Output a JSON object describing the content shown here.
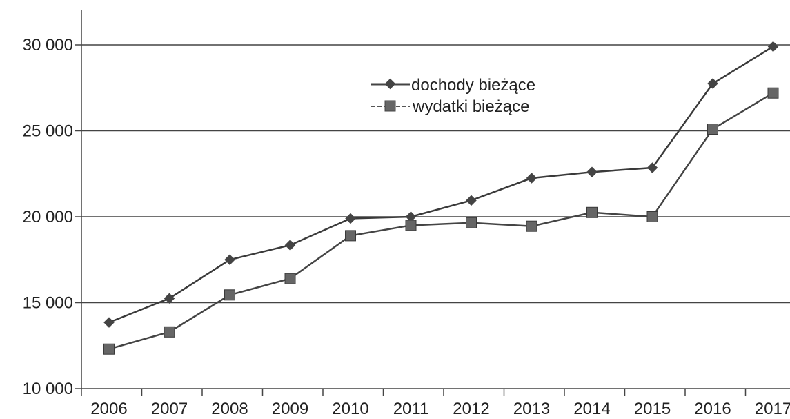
{
  "chart_data": {
    "type": "line",
    "title": "",
    "xlabel": "",
    "ylabel": "",
    "categories": [
      "2006",
      "2007",
      "2008",
      "2009",
      "2010",
      "2011",
      "2012",
      "2013",
      "2014",
      "2015",
      "2016",
      "2017"
    ],
    "ylim": [
      10000,
      30000
    ],
    "yticks": [
      10000,
      15000,
      20000,
      25000,
      30000
    ],
    "ytick_labels": [
      "10 000",
      "15 000",
      "20 000",
      "25 000",
      "30 000"
    ],
    "grid": true,
    "legend_position": "top-center",
    "series": [
      {
        "name": "dochody bieżące",
        "marker": "diamond",
        "color": "#555555",
        "values": [
          13850,
          15250,
          17500,
          18350,
          19900,
          20000,
          20950,
          22250,
          22600,
          22850,
          27750,
          29900
        ]
      },
      {
        "name": "wydatki bieżące",
        "marker": "square",
        "color": "#555555",
        "values": [
          12300,
          13300,
          15450,
          16400,
          18900,
          19500,
          19650,
          19450,
          20250,
          20000,
          25100,
          27200
        ]
      }
    ]
  }
}
